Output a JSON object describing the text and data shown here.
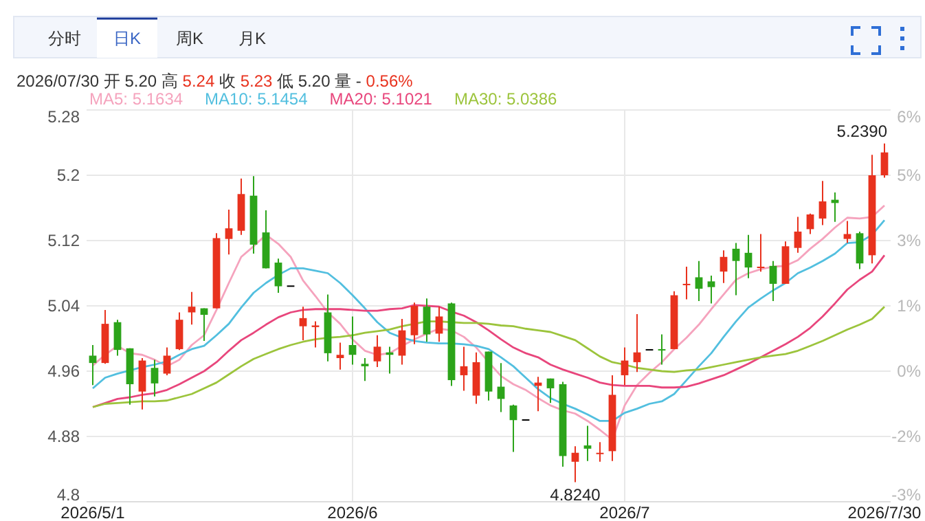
{
  "chart_data": {
    "type": "candlestick",
    "categories": [
      "2026/5/1",
      null,
      null,
      null,
      null,
      null,
      null,
      null,
      null,
      null,
      null,
      null,
      null,
      null,
      null,
      null,
      null,
      null,
      null,
      null,
      null,
      "2026/6",
      null,
      null,
      null,
      null,
      null,
      null,
      null,
      null,
      null,
      null,
      null,
      null,
      null,
      null,
      null,
      null,
      null,
      null,
      null,
      null,
      null,
      "2026/7",
      null,
      null,
      null,
      null,
      null,
      null,
      null,
      null,
      null,
      null,
      null,
      null,
      null,
      null,
      null,
      null,
      null,
      null,
      null,
      null,
      "2026/7/30"
    ],
    "ohlc": [
      [
        4.979,
        4.992,
        4.943,
        4.97
      ],
      [
        4.97,
        5.035,
        4.969,
        5.018
      ],
      [
        5.02,
        5.023,
        4.979,
        4.986
      ],
      [
        4.988,
        4.988,
        4.919,
        4.944
      ],
      [
        4.935,
        4.976,
        4.913,
        4.973
      ],
      [
        4.964,
        4.974,
        4.929,
        4.945
      ],
      [
        4.957,
        4.989,
        4.955,
        4.979
      ],
      [
        4.987,
        5.032,
        4.986,
        5.023
      ],
      [
        5.032,
        5.057,
        5.017,
        5.039
      ],
      [
        5.037,
        5.037,
        4.997,
        5.029
      ],
      [
        5.037,
        5.129,
        5.037,
        5.123
      ],
      [
        5.122,
        5.158,
        5.103,
        5.135
      ],
      [
        5.132,
        5.196,
        5.127,
        5.177
      ],
      [
        5.175,
        5.199,
        5.104,
        5.115
      ],
      [
        5.13,
        5.157,
        5.086,
        5.086
      ],
      [
        5.093,
        5.098,
        5.056,
        5.064
      ],
      [
        5.065,
        5.065,
        5.065,
        5.065
      ],
      [
        5.015,
        5.039,
        4.998,
        5.025
      ],
      [
        5.014,
        5.021,
        4.989,
        5.016
      ],
      [
        5.032,
        5.054,
        4.972,
        4.982
      ],
      [
        4.976,
        4.995,
        4.962,
        4.98
      ],
      [
        4.992,
        5.027,
        4.968,
        4.98
      ],
      [
        4.969,
        4.976,
        4.948,
        4.966
      ],
      [
        4.972,
        5.004,
        4.965,
        4.99
      ],
      [
        4.983,
        4.99,
        4.957,
        4.98
      ],
      [
        4.979,
        5.024,
        4.968,
        5.01
      ],
      [
        5.004,
        5.044,
        4.993,
        5.04
      ],
      [
        5.039,
        5.049,
        4.996,
        5.005
      ],
      [
        5.006,
        5.039,
        4.996,
        5.027
      ],
      [
        5.043,
        5.044,
        4.942,
        4.949
      ],
      [
        4.955,
        4.99,
        4.936,
        4.966
      ],
      [
        4.93,
        4.983,
        4.92,
        4.971
      ],
      [
        4.984,
        4.984,
        4.924,
        4.935
      ],
      [
        4.941,
        4.97,
        4.91,
        4.926
      ],
      [
        4.918,
        4.919,
        4.861,
        4.9
      ],
      [
        4.901,
        4.901,
        4.901,
        4.901
      ],
      [
        4.942,
        4.953,
        4.911,
        4.946
      ],
      [
        4.951,
        4.951,
        4.921,
        4.939
      ],
      [
        4.944,
        4.947,
        4.843,
        4.856
      ],
      [
        4.849,
        4.868,
        4.824,
        4.86
      ],
      [
        4.869,
        4.893,
        4.85,
        4.865
      ],
      [
        4.859,
        4.873,
        4.849,
        4.86
      ],
      [
        4.862,
        4.955,
        4.85,
        4.931
      ],
      [
        4.955,
        4.989,
        4.943,
        4.973
      ],
      [
        4.971,
        5.03,
        4.959,
        4.983
      ],
      [
        4.987,
        4.987,
        4.987,
        4.987
      ],
      [
        4.987,
        5.005,
        4.968,
        4.986
      ],
      [
        4.987,
        5.058,
        4.987,
        5.053
      ],
      [
        5.066,
        5.088,
        5.048,
        5.067
      ],
      [
        5.075,
        5.095,
        5.046,
        5.061
      ],
      [
        5.07,
        5.077,
        5.043,
        5.063
      ],
      [
        5.082,
        5.108,
        5.068,
        5.1
      ],
      [
        5.11,
        5.117,
        5.053,
        5.095
      ],
      [
        5.105,
        5.127,
        5.074,
        5.087
      ],
      [
        5.087,
        5.128,
        5.082,
        5.088
      ],
      [
        5.089,
        5.095,
        5.046,
        5.067
      ],
      [
        5.067,
        5.119,
        5.067,
        5.113
      ],
      [
        5.111,
        5.149,
        5.105,
        5.131
      ],
      [
        5.134,
        5.153,
        5.128,
        5.152
      ],
      [
        5.147,
        5.193,
        5.139,
        5.168
      ],
      [
        5.17,
        5.179,
        5.143,
        5.166
      ],
      [
        5.122,
        5.144,
        5.117,
        5.128
      ],
      [
        5.129,
        5.131,
        5.085,
        5.092
      ],
      [
        5.102,
        5.225,
        5.092,
        5.2
      ],
      [
        5.2,
        5.239,
        5.197,
        5.228
      ]
    ],
    "colors": [
      "#2ca41a",
      "#e8321e",
      "#2ca41a",
      "#2ca41a",
      "#e8321e",
      "#2ca41a",
      "#e8321e",
      "#e8321e",
      "#e8321e",
      "#2ca41a",
      "#e8321e",
      "#e8321e",
      "#e8321e",
      "#2ca41a",
      "#2ca41a",
      "#2ca41a",
      "#000000",
      "#e8321e",
      "#e8321e",
      "#2ca41a",
      "#e8321e",
      "#2ca41a",
      "#2ca41a",
      "#e8321e",
      "#2ca41a",
      "#e8321e",
      "#e8321e",
      "#2ca41a",
      "#e8321e",
      "#2ca41a",
      "#e8321e",
      "#e8321e",
      "#2ca41a",
      "#2ca41a",
      "#2ca41a",
      "#000000",
      "#e8321e",
      "#2ca41a",
      "#2ca41a",
      "#e8321e",
      "#2ca41a",
      "#e8321e",
      "#e8321e",
      "#e8321e",
      "#e8321e",
      "#000000",
      "#2ca41a",
      "#e8321e",
      "#e8321e",
      "#2ca41a",
      "#2ca41a",
      "#e8321e",
      "#2ca41a",
      "#2ca41a",
      "#e8321e",
      "#2ca41a",
      "#e8321e",
      "#e8321e",
      "#e8321e",
      "#e8321e",
      "#2ca41a",
      "#e8321e",
      "#2ca41a",
      "#e8321e",
      "#e8321e"
    ],
    "series": [
      {
        "type": "line",
        "name": "MA5: 5.1634",
        "color": "#f5a3bd",
        "values": [
          4.967,
          4.98,
          4.991,
          4.982,
          4.98,
          4.974,
          4.966,
          4.974,
          4.992,
          5.004,
          5.035,
          5.068,
          5.1,
          5.113,
          5.127,
          5.116,
          5.1,
          5.071,
          5.052,
          5.032,
          5.018,
          4.999,
          4.985,
          4.98,
          4.982,
          4.991,
          4.999,
          5.006,
          5.012,
          5.01,
          5.002,
          4.989,
          4.971,
          4.954,
          4.944,
          4.937,
          4.927,
          4.918,
          4.912,
          4.908,
          4.899,
          4.888,
          4.876,
          4.918,
          4.943,
          4.958,
          4.971,
          4.987,
          5.001,
          5.017,
          5.036,
          5.054,
          5.072,
          5.08,
          5.085,
          5.088,
          5.089,
          5.096,
          5.11,
          5.122,
          5.136,
          5.148,
          5.147,
          5.149,
          5.163
        ]
      },
      {
        "type": "line",
        "name": "MA10: 5.1454",
        "color": "#52bfdf",
        "values": [
          4.939,
          4.952,
          4.957,
          4.961,
          4.965,
          4.968,
          4.972,
          4.98,
          4.987,
          4.991,
          5.004,
          5.018,
          5.038,
          5.056,
          5.068,
          5.078,
          5.086,
          5.086,
          5.083,
          5.08,
          5.068,
          5.053,
          5.037,
          5.02,
          5.007,
          5.001,
          4.997,
          4.995,
          4.994,
          4.994,
          4.993,
          4.991,
          4.987,
          4.977,
          4.966,
          4.952,
          4.938,
          4.927,
          4.92,
          4.914,
          4.907,
          4.899,
          4.899,
          4.909,
          4.914,
          4.92,
          4.923,
          4.932,
          4.949,
          4.966,
          4.982,
          5.002,
          5.021,
          5.038,
          5.049,
          5.059,
          5.068,
          5.08,
          5.087,
          5.095,
          5.104,
          5.117,
          5.118,
          5.127,
          5.145
        ]
      },
      {
        "type": "line",
        "name": "MA20: 5.1021",
        "color": "#e8467c",
        "values": [
          4.916,
          4.921,
          4.926,
          4.928,
          4.931,
          4.933,
          4.937,
          4.944,
          4.952,
          4.96,
          4.971,
          4.985,
          4.998,
          5.007,
          5.017,
          5.026,
          5.032,
          5.035,
          5.036,
          5.036,
          5.036,
          5.035,
          5.034,
          5.034,
          5.036,
          5.037,
          5.041,
          5.04,
          5.039,
          5.033,
          5.028,
          5.02,
          5.01,
          4.999,
          4.989,
          4.982,
          4.977,
          4.968,
          4.962,
          4.957,
          4.952,
          4.946,
          4.943,
          4.942,
          4.942,
          4.942,
          4.94,
          4.94,
          4.941,
          4.945,
          4.95,
          4.955,
          4.962,
          4.969,
          4.977,
          4.985,
          4.993,
          5.002,
          5.013,
          5.027,
          5.043,
          5.06,
          5.072,
          5.082,
          5.102
        ]
      },
      {
        "type": "line",
        "name": "MA30: 5.0386",
        "color": "#9cc43c",
        "values": [
          4.916,
          4.92,
          4.921,
          4.922,
          4.923,
          4.923,
          4.924,
          4.928,
          4.932,
          4.939,
          4.946,
          4.956,
          4.966,
          4.975,
          4.981,
          4.987,
          4.992,
          4.996,
          4.999,
          5.001,
          5.002,
          5.004,
          5.007,
          5.009,
          5.011,
          5.015,
          5.018,
          5.021,
          5.021,
          5.02,
          5.019,
          5.019,
          5.018,
          5.016,
          5.015,
          5.012,
          5.01,
          5.008,
          5.003,
          4.998,
          4.988,
          4.978,
          4.971,
          4.968,
          4.964,
          4.962,
          4.96,
          4.959,
          4.961,
          4.962,
          4.965,
          4.968,
          4.971,
          4.974,
          4.977,
          4.979,
          4.981,
          4.985,
          4.991,
          4.997,
          5.004,
          5.011,
          5.017,
          5.024,
          5.039
        ]
      }
    ],
    "ylim": [
      4.8,
      5.28
    ],
    "yticks": [
      4.8,
      4.88,
      4.96,
      5.04,
      5.12,
      5.2,
      5.28
    ],
    "grid": true,
    "legend": "top left",
    "annotations": [
      "分时",
      "日K",
      "周K",
      "月K",
      "2026/07/30 开 5.20 高 5.24 收 5.23 低 5.20 量 - 0.56%",
      "-3%",
      "-2%",
      "0%",
      "1%",
      "3%",
      "5%",
      "6%",
      {
        "text": "5.2390",
        "x": "2026/7/30",
        "y": 5.239
      },
      {
        "text": "4.8240",
        "y": 4.824
      }
    ]
  }
}
